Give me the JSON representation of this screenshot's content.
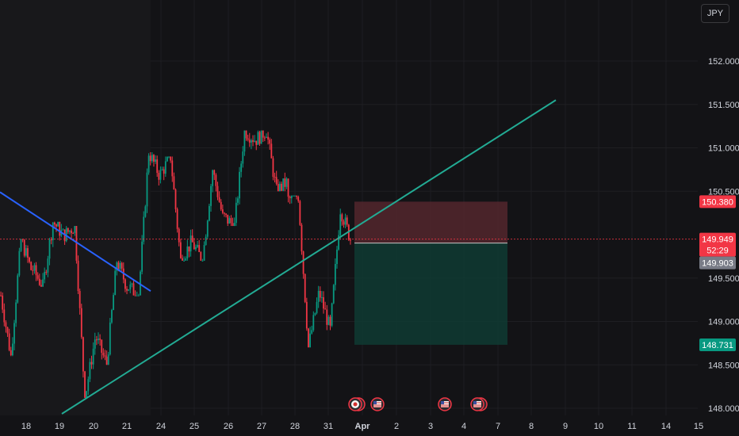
{
  "symbol_currency": "JPY",
  "colors": {
    "background": "#131316",
    "grid": "#1e1e22",
    "up": "#089981",
    "down": "#f23645",
    "trendline_up": "#22ab94",
    "trendline_down": "#2962ff",
    "stop_zone": "#5c2a30",
    "target_zone": "#0f3b33",
    "axis_text": "#d1d4dc"
  },
  "price_axis": {
    "ticks": [
      "152.000",
      "151.500",
      "151.000",
      "150.500",
      "149.500",
      "149.000",
      "148.500",
      "148.000"
    ],
    "labels": {
      "stop": "150.380",
      "current": "149.949",
      "countdown": "52:29",
      "entry": "149.903",
      "target": "148.731"
    }
  },
  "time_axis": {
    "ticks": [
      "18",
      "19",
      "20",
      "21",
      "24",
      "25",
      "26",
      "27",
      "28",
      "31",
      "Apr",
      "2",
      "3",
      "4",
      "7",
      "8",
      "9",
      "10",
      "11",
      "14",
      "15"
    ]
  },
  "events": [
    {
      "icon": "event-flag-icon",
      "count": 2
    },
    {
      "icon": "us-flag-icon",
      "count": 1
    },
    {
      "icon": "us-flag-icon",
      "count": 1
    },
    {
      "icon": "us-flag-icon",
      "count": 2
    }
  ],
  "chart_data": {
    "type": "candlestick",
    "instrument_currency": "JPY",
    "ylim": [
      148.0,
      152.1
    ],
    "x_categories": [
      "18",
      "19",
      "20",
      "21",
      "24",
      "25",
      "26",
      "27",
      "28",
      "31",
      "Apr"
    ],
    "daily_ranges": [
      {
        "date": "18",
        "open": 149.3,
        "high": 149.95,
        "low": 148.6,
        "close": 149.6
      },
      {
        "date": "19",
        "open": 149.6,
        "high": 150.15,
        "low": 149.4,
        "close": 150.0
      },
      {
        "date": "20",
        "open": 150.0,
        "high": 150.1,
        "low": 148.12,
        "close": 148.8
      },
      {
        "date": "21",
        "open": 148.8,
        "high": 149.7,
        "low": 148.5,
        "close": 149.4
      },
      {
        "date": "24",
        "open": 149.4,
        "high": 150.95,
        "low": 149.3,
        "close": 150.7
      },
      {
        "date": "25",
        "open": 150.7,
        "high": 150.9,
        "low": 149.7,
        "close": 149.9
      },
      {
        "date": "26",
        "open": 149.9,
        "high": 150.75,
        "low": 149.7,
        "close": 150.2
      },
      {
        "date": "27",
        "open": 150.2,
        "high": 151.2,
        "low": 150.1,
        "close": 151.1
      },
      {
        "date": "28",
        "open": 151.1,
        "high": 151.2,
        "low": 150.5,
        "close": 150.6
      },
      {
        "date": "31",
        "open": 150.4,
        "high": 150.45,
        "low": 148.7,
        "close": 149.3
      },
      {
        "date": "Apr",
        "open": 149.3,
        "high": 150.3,
        "low": 148.9,
        "close": 149.95
      }
    ],
    "last_price": 149.949,
    "position": {
      "entry": 149.903,
      "stop": 150.38,
      "target": 148.731,
      "side": "short"
    },
    "trendlines": [
      {
        "name": "rising",
        "from": {
          "date": "20",
          "price": 147.9
        },
        "to": {
          "date": "9",
          "price": 151.55
        }
      },
      {
        "name": "falling",
        "from": {
          "date": "17",
          "price": 150.38
        },
        "to": {
          "date": "21",
          "price": 149.35
        }
      }
    ]
  }
}
